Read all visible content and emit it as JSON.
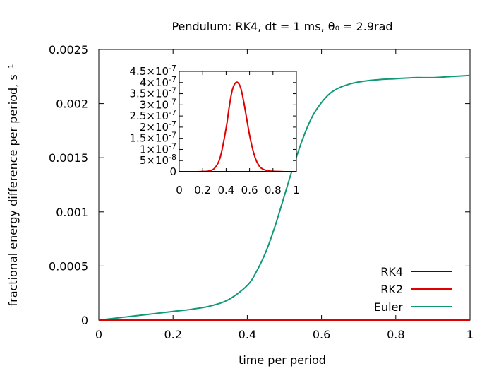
{
  "chart_data": [
    {
      "type": "line",
      "title": "Pendulum: RK4, dt = 1 ms, θ₀ = 2.9rad",
      "xlabel": "time per period",
      "ylabel": "fractional energy difference per period, s⁻¹",
      "xlim": [
        0,
        1
      ],
      "ylim": [
        0,
        0.0025
      ],
      "x_ticks": [
        "0",
        "0.2",
        "0.4",
        "0.6",
        "0.8",
        "1"
      ],
      "x_tick_values": [
        0,
        0.2,
        0.4,
        0.6,
        0.8,
        1
      ],
      "y_ticks": [
        "0",
        "0.0005",
        "0.001",
        "0.0015",
        "0.002",
        "0.0025"
      ],
      "y_tick_values": [
        0,
        0.0005,
        0.001,
        0.0015,
        0.002,
        0.0025
      ],
      "grid": false,
      "legend_position": "bottom-right",
      "series": [
        {
          "name": "RK4",
          "color": "#0000e0",
          "x": [
            0,
            0.2,
            0.4,
            0.6,
            0.8,
            1
          ],
          "y": [
            0,
            0,
            0,
            0,
            0,
            0
          ]
        },
        {
          "name": "RK2",
          "color": "#e00000",
          "x": [
            0,
            0.2,
            0.4,
            0.6,
            0.8,
            1
          ],
          "y": [
            0,
            0,
            0,
            0,
            0,
            0
          ]
        },
        {
          "name": "Euler",
          "color": "#119977",
          "x": [
            0,
            0.05,
            0.1,
            0.15,
            0.2,
            0.25,
            0.3,
            0.35,
            0.4,
            0.425,
            0.45,
            0.475,
            0.5,
            0.525,
            0.55,
            0.575,
            0.6,
            0.625,
            0.65,
            0.675,
            0.7,
            0.75,
            0.8,
            0.85,
            0.9,
            0.95,
            1.0
          ],
          "y": [
            0,
            2e-05,
            4e-05,
            6e-05,
            8e-05,
            0.0001,
            0.00013,
            0.00019,
            0.00032,
            0.00045,
            0.00063,
            0.00087,
            0.00115,
            0.00143,
            0.00168,
            0.00188,
            0.00201,
            0.0021,
            0.00215,
            0.00218,
            0.0022,
            0.00222,
            0.00223,
            0.00224,
            0.00224,
            0.00225,
            0.00226
          ]
        }
      ]
    },
    {
      "type": "line",
      "xlim": [
        0,
        1
      ],
      "ylim": [
        0,
        4.5e-07
      ],
      "x_ticks": [
        "0",
        "0.2",
        "0.4",
        "0.6",
        "0.8",
        "1"
      ],
      "x_tick_values": [
        0,
        0.2,
        0.4,
        0.6,
        0.8,
        1
      ],
      "y_tick_values": [
        0,
        5e-08,
        1e-07,
        1.5e-07,
        2e-07,
        2.5e-07,
        3e-07,
        3.5e-07,
        4e-07,
        4.5e-07
      ],
      "y_ticks": [
        {
          "mant": "0",
          "exp": ""
        },
        {
          "mant": "5×10",
          "exp": "-8"
        },
        {
          "mant": "1×10",
          "exp": "-7"
        },
        {
          "mant": "1.5×10",
          "exp": "-7"
        },
        {
          "mant": "2×10",
          "exp": "-7"
        },
        {
          "mant": "2.5×10",
          "exp": "-7"
        },
        {
          "mant": "3×10",
          "exp": "-7"
        },
        {
          "mant": "3.5×10",
          "exp": "-7"
        },
        {
          "mant": "4×10",
          "exp": "-7"
        },
        {
          "mant": "4.5×10",
          "exp": "-7"
        }
      ],
      "grid": false,
      "series": [
        {
          "color": "#e00000",
          "x": [
            0,
            0.05,
            0.1,
            0.15,
            0.2,
            0.25,
            0.3,
            0.35,
            0.4,
            0.425,
            0.45,
            0.475,
            0.5,
            0.525,
            0.55,
            0.575,
            0.6,
            0.625,
            0.65,
            0.675,
            0.7,
            0.75,
            0.8,
            0.85,
            0.9,
            0.95,
            1.0
          ],
          "y": [
            0,
            0,
            0,
            0,
            1e-09,
            3e-09,
            1.5e-08,
            6.5e-08,
            1.95e-07,
            2.85e-07,
            3.6e-07,
            3.95e-07,
            4e-07,
            3.75e-07,
            3.15e-07,
            2.4e-07,
            1.65e-07,
            1.05e-07,
            6e-08,
            3.2e-08,
            1.6e-08,
            5e-09,
            2e-09,
            1e-09,
            0,
            0,
            0
          ]
        },
        {
          "color": "#0000e0",
          "x": [
            0,
            0.2,
            0.4,
            0.6,
            0.8,
            1
          ],
          "y": [
            0,
            0,
            0,
            0,
            0,
            0
          ]
        }
      ]
    }
  ]
}
